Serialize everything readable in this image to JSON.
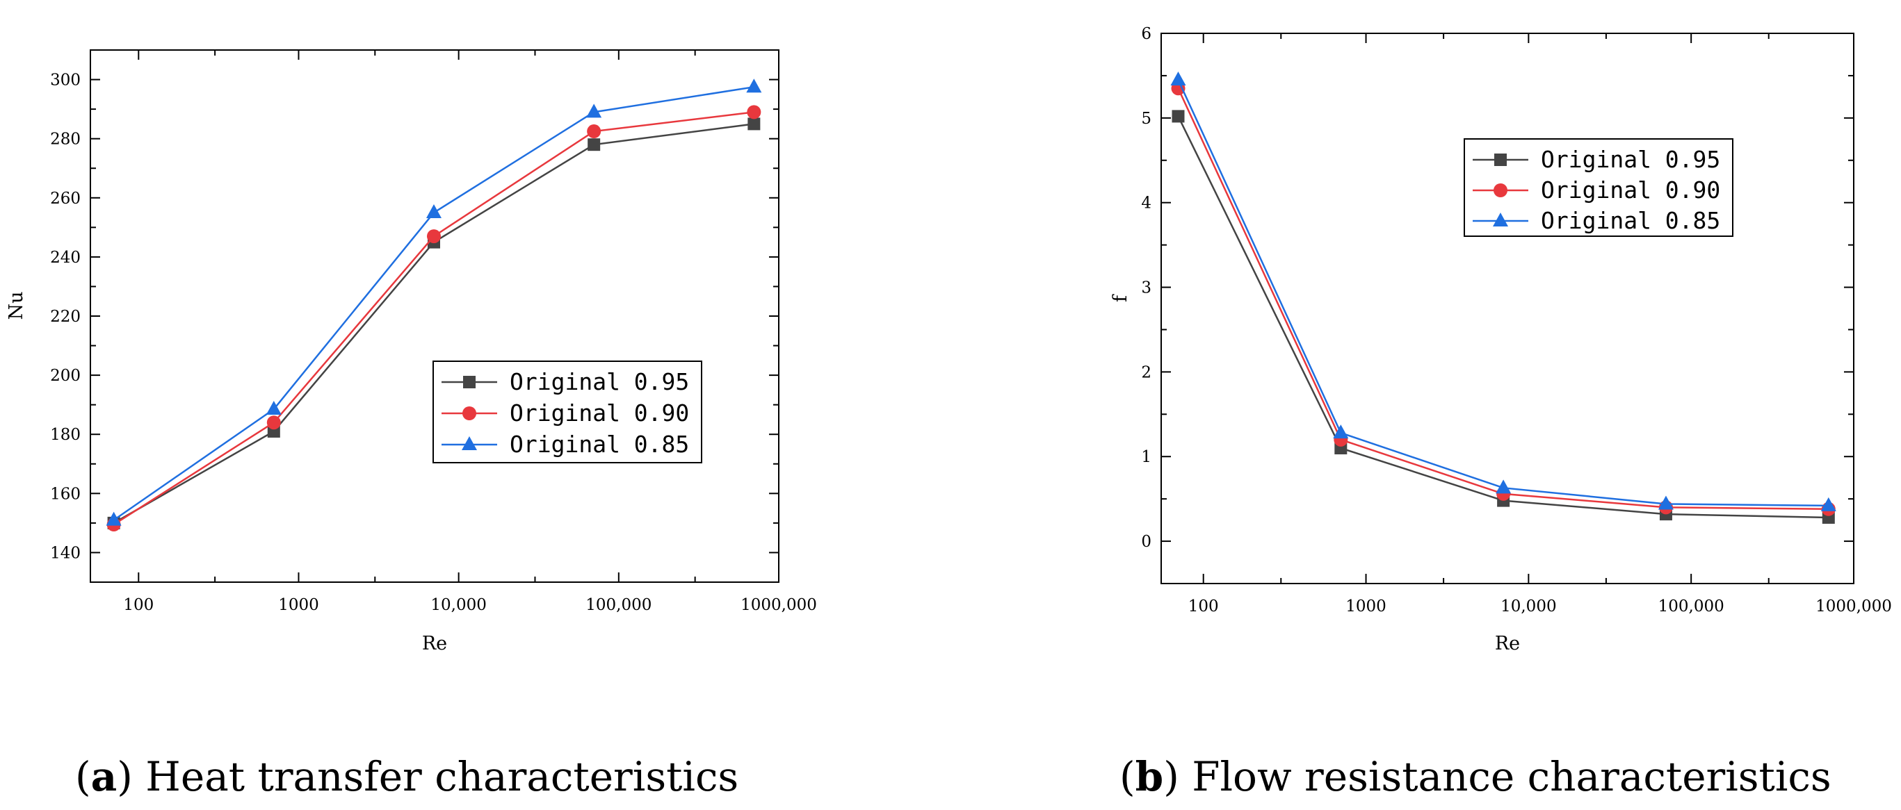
{
  "chart_data": [
    {
      "type": "line",
      "caption_letter": "a",
      "caption_rest": "Heat transfer characteristics",
      "xlabel": "Re",
      "ylabel": "Nu",
      "xscale": "log",
      "xlim": [
        50,
        1000000
      ],
      "ylim": [
        130,
        310
      ],
      "x_ticks": [
        100,
        1000,
        10000,
        100000,
        1000000
      ],
      "x_tick_labels": [
        "100",
        "1000",
        "10,000",
        "100,000",
        "1000,000"
      ],
      "y_ticks": [
        140,
        160,
        180,
        200,
        220,
        240,
        260,
        280,
        300
      ],
      "y_tick_labels": [
        "140",
        "160",
        "180",
        "200",
        "220",
        "240",
        "260",
        "280",
        "300"
      ],
      "legend_position": "center-right",
      "x": [
        70,
        700,
        7000,
        70000,
        700000
      ],
      "series": [
        {
          "name": "Original 0.95",
          "color": "#444444",
          "marker": "square",
          "values": [
            150,
            181,
            245,
            278,
            285
          ]
        },
        {
          "name": "Original 0.90",
          "color": "#e8383d",
          "marker": "circle",
          "values": [
            149.5,
            184,
            247,
            282.5,
            289
          ]
        },
        {
          "name": "Original 0.85",
          "color": "#1f6fe0",
          "marker": "triangle",
          "values": [
            151,
            188.5,
            255,
            289,
            297.5
          ]
        }
      ]
    },
    {
      "type": "line",
      "caption_letter": "b",
      "caption_rest": "Flow resistance characteristics",
      "xlabel": "Re",
      "ylabel": "f",
      "xscale": "log",
      "xlim": [
        55,
        1000000
      ],
      "ylim": [
        -0.5,
        6
      ],
      "x_ticks": [
        100,
        1000,
        10000,
        100000,
        1000000
      ],
      "x_tick_labels": [
        "100",
        "1000",
        "10,000",
        "100,000",
        "1000,000"
      ],
      "y_ticks": [
        0,
        1,
        2,
        3,
        4,
        5,
        6
      ],
      "y_tick_labels": [
        "0",
        "1",
        "2",
        "3",
        "4",
        "5",
        "6"
      ],
      "legend_position": "top-right",
      "x": [
        70,
        700,
        7000,
        70000,
        700000
      ],
      "series": [
        {
          "name": "Original 0.95",
          "color": "#444444",
          "marker": "square",
          "values": [
            5.02,
            1.1,
            0.48,
            0.32,
            0.28
          ]
        },
        {
          "name": "Original 0.90",
          "color": "#e8383d",
          "marker": "circle",
          "values": [
            5.35,
            1.2,
            0.56,
            0.4,
            0.38
          ]
        },
        {
          "name": "Original 0.85",
          "color": "#1f6fe0",
          "marker": "triangle",
          "values": [
            5.45,
            1.28,
            0.63,
            0.44,
            0.42
          ]
        }
      ]
    }
  ]
}
